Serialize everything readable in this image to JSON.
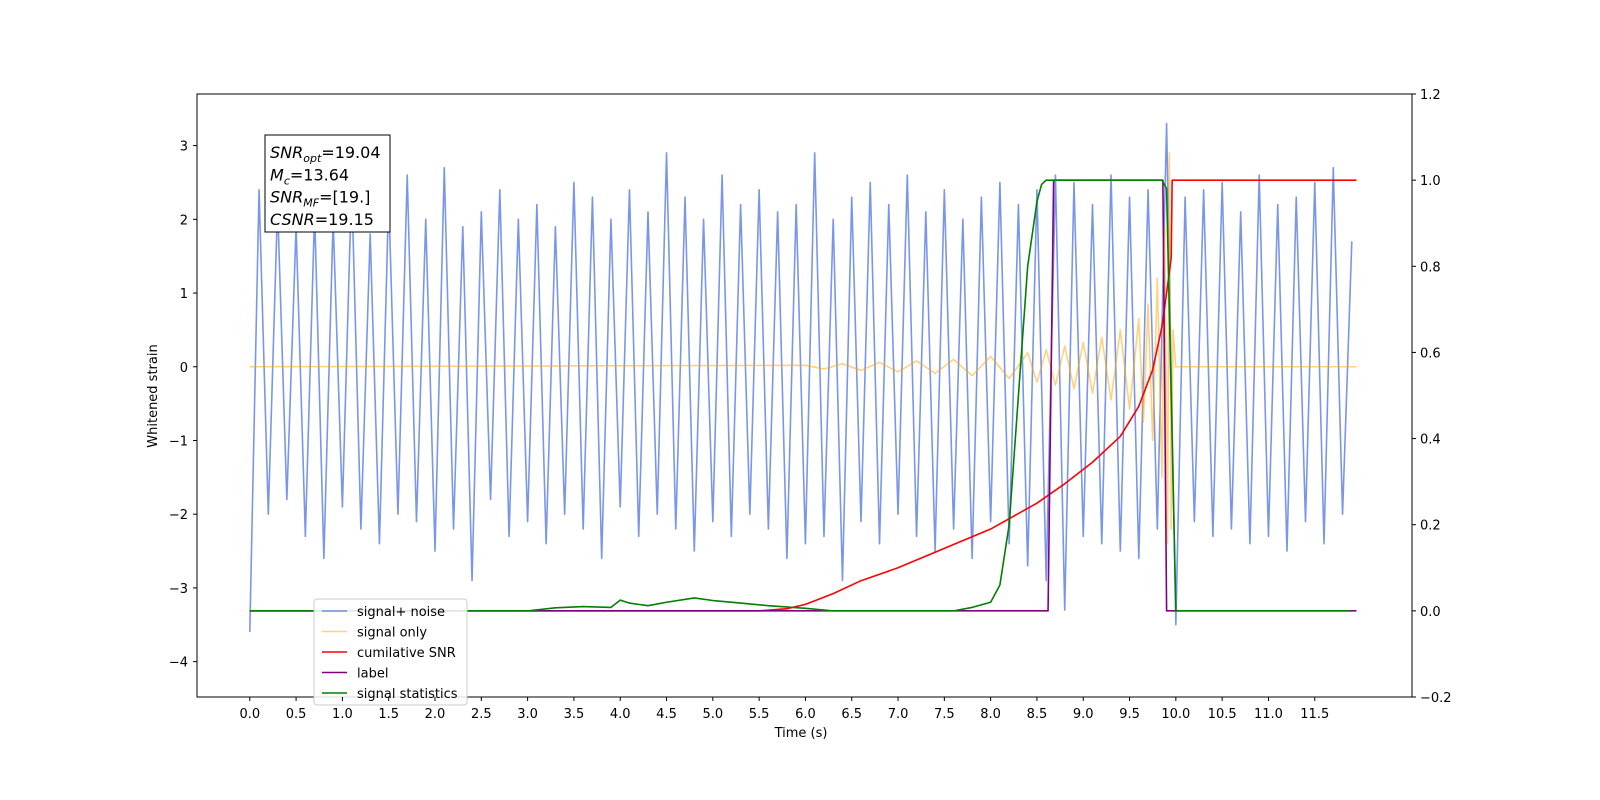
{
  "chart_data": {
    "type": "line",
    "xlabel": "Time (s)",
    "ylabel": "Whitened strain",
    "xlim": [
      -0.57,
      12.55
    ],
    "ylim": [
      -4.48,
      3.7
    ],
    "y2lim": [
      -0.2,
      1.2
    ],
    "xticks": [
      {
        "value": 0,
        "label": "0.0"
      },
      0.5,
      {
        "value": 1,
        "label": "1.0"
      },
      1.5,
      {
        "value": 2,
        "label": "2.0"
      },
      2.5,
      {
        "value": 3,
        "label": "3.0"
      },
      3.5,
      {
        "value": 4,
        "label": "4.0"
      },
      4.5,
      {
        "value": 5,
        "label": "5.0"
      },
      5.5,
      {
        "value": 6,
        "label": "6.0"
      },
      6.5,
      {
        "value": 7,
        "label": "7.0"
      },
      7.5,
      {
        "value": 8,
        "label": "8.0"
      },
      8.5,
      {
        "value": 9,
        "label": "9.0"
      },
      9.5,
      {
        "value": 10,
        "label": "10.0"
      },
      10.5,
      {
        "value": 11,
        "label": "11.0"
      },
      11.5
    ],
    "yticks": [
      {
        "value": -4,
        "label": "−4"
      },
      {
        "value": -3,
        "label": "−3"
      },
      {
        "value": -2,
        "label": "−2"
      },
      {
        "value": -1,
        "label": "−1"
      },
      0,
      1,
      2,
      3
    ],
    "y2ticks": [
      {
        "value": -0.2,
        "label": "−0.2"
      },
      {
        "value": 0,
        "label": "0.0"
      },
      0.2,
      0.4,
      0.6,
      0.8,
      {
        "value": 1,
        "label": "1.0"
      },
      1.2
    ],
    "legend_loc": "lower left",
    "annotations": [
      {
        "symbol": "SNR",
        "subscript": "opt",
        "text": "=19.04"
      },
      {
        "symbol": "M",
        "subscript": "c",
        "text": "=13.64"
      },
      {
        "symbol": "SNR",
        "subscript": "MF",
        "text": "=[19.]"
      },
      {
        "symbol": "CSNR",
        "text": "=19.15"
      }
    ],
    "series": [
      {
        "name": "signal+ noise",
        "color": "#4169e1",
        "alpha": 0.7,
        "x": [
          0.0,
          0.1,
          0.2,
          0.3,
          0.4,
          0.5,
          0.6,
          0.7,
          0.8,
          0.9,
          1.0,
          1.1,
          1.2,
          1.3,
          1.4,
          1.5,
          1.6,
          1.7,
          1.8,
          1.9,
          2.0,
          2.1,
          2.2,
          2.3,
          2.4,
          2.5,
          2.6,
          2.7,
          2.8,
          2.9,
          3.0,
          3.1,
          3.2,
          3.3,
          3.4,
          3.5,
          3.6,
          3.7,
          3.8,
          3.9,
          4.0,
          4.1,
          4.2,
          4.3,
          4.4,
          4.5,
          4.6,
          4.7,
          4.8,
          4.9,
          5.0,
          5.1,
          5.2,
          5.3,
          5.4,
          5.5,
          5.6,
          5.7,
          5.8,
          5.9,
          6.0,
          6.1,
          6.2,
          6.3,
          6.4,
          6.5,
          6.6,
          6.7,
          6.8,
          6.9,
          7.0,
          7.1,
          7.2,
          7.3,
          7.4,
          7.5,
          7.6,
          7.7,
          7.8,
          7.9,
          8.0,
          8.1,
          8.2,
          8.3,
          8.4,
          8.5,
          8.6,
          8.7,
          8.8,
          8.9,
          9.0,
          9.1,
          9.2,
          9.3,
          9.4,
          9.5,
          9.6,
          9.7,
          9.8,
          9.9,
          10.0,
          10.1,
          10.2,
          10.3,
          10.4,
          10.5,
          10.6,
          10.7,
          10.8,
          10.9,
          11.0,
          11.1,
          11.2,
          11.3,
          11.4,
          11.5,
          11.6,
          11.7,
          11.8,
          11.9
        ],
        "values": [
          -3.6,
          2.4,
          -2.0,
          2.2,
          -1.8,
          1.9,
          -2.3,
          2.1,
          -2.6,
          2.0,
          -1.9,
          2.5,
          -2.2,
          1.8,
          -2.4,
          2.3,
          -2.0,
          2.6,
          -2.1,
          2.0,
          -2.5,
          2.7,
          -2.2,
          1.9,
          -2.9,
          2.1,
          -1.8,
          2.4,
          -2.3,
          2.0,
          -2.1,
          2.2,
          -2.4,
          1.9,
          -2.0,
          2.5,
          -2.2,
          2.3,
          -2.6,
          2.0,
          -1.9,
          2.4,
          -2.3,
          2.1,
          -2.0,
          2.9,
          -2.2,
          2.3,
          -2.5,
          2.0,
          -2.1,
          2.6,
          -2.3,
          2.2,
          -2.0,
          2.4,
          -2.2,
          2.1,
          -2.6,
          2.2,
          -2.4,
          2.9,
          -2.3,
          2.0,
          -2.9,
          2.3,
          -2.1,
          2.5,
          -2.4,
          2.2,
          -2.0,
          2.6,
          -2.3,
          2.1,
          -2.5,
          2.4,
          -2.2,
          2.0,
          -2.6,
          2.3,
          -2.1,
          2.5,
          -2.4,
          2.2,
          -2.7,
          2.4,
          -2.9,
          2.6,
          -3.3,
          2.5,
          -2.3,
          2.2,
          -2.4,
          2.6,
          -2.5,
          2.3,
          -2.6,
          2.4,
          -2.2,
          3.3,
          -3.5,
          2.3,
          -2.1,
          2.4,
          -2.3,
          2.5,
          -2.2,
          2.1,
          -2.4,
          2.6,
          -2.3,
          2.2,
          -2.5,
          2.3,
          -2.1,
          2.5,
          -2.4,
          2.7,
          -2.0,
          1.7
        ]
      },
      {
        "name": "signal only",
        "color": "#ffa500",
        "alpha": 0.5,
        "x": [
          0,
          6.0,
          6.2,
          6.4,
          6.6,
          6.8,
          7.0,
          7.2,
          7.4,
          7.6,
          7.8,
          8.0,
          8.2,
          8.4,
          8.5,
          8.6,
          8.7,
          8.8,
          8.9,
          9.0,
          9.1,
          9.2,
          9.3,
          9.4,
          9.5,
          9.6,
          9.65,
          9.7,
          9.75,
          9.8,
          9.85,
          9.88,
          9.91,
          9.93,
          9.95,
          9.97,
          10.0,
          11.95
        ],
        "values": [
          0,
          0.02,
          -0.03,
          0.04,
          -0.05,
          0.06,
          -0.07,
          0.08,
          -0.09,
          0.1,
          -0.12,
          0.14,
          -0.16,
          0.19,
          -0.21,
          0.23,
          -0.25,
          0.28,
          -0.3,
          0.33,
          -0.36,
          0.4,
          -0.45,
          0.5,
          -0.57,
          0.65,
          -0.75,
          0.85,
          -1.0,
          1.2,
          -1.5,
          1.9,
          -2.4,
          2.9,
          -2.2,
          0.5,
          0,
          0
        ]
      },
      {
        "name": "cumilative SNR",
        "color": "#ff0000",
        "axis": "y2",
        "x": [
          0,
          5.5,
          5.8,
          6.0,
          6.3,
          6.6,
          7.0,
          7.5,
          8.0,
          8.5,
          8.8,
          9.1,
          9.4,
          9.6,
          9.75,
          9.85,
          9.92,
          9.95,
          9.96,
          11.95
        ],
        "values": [
          0,
          0,
          0.005,
          0.015,
          0.04,
          0.07,
          0.1,
          0.145,
          0.19,
          0.25,
          0.295,
          0.345,
          0.405,
          0.475,
          0.56,
          0.66,
          0.77,
          0.82,
          1.0,
          1.0
        ]
      },
      {
        "name": "label",
        "color": "#800080",
        "axis": "y2",
        "x": [
          0,
          8.62,
          8.68,
          9.86,
          9.9,
          11.95
        ],
        "values": [
          0,
          0,
          1,
          1,
          0,
          0
        ]
      },
      {
        "name": "signal statistics",
        "color": "#008000",
        "axis": "y2",
        "x": [
          0,
          3.0,
          3.3,
          3.6,
          3.9,
          4.0,
          4.1,
          4.3,
          4.5,
          4.8,
          5.0,
          5.3,
          5.6,
          6.0,
          6.3,
          7.6,
          7.8,
          8.0,
          8.1,
          8.2,
          8.3,
          8.4,
          8.5,
          8.55,
          8.6,
          9.85,
          9.9,
          9.95,
          10.0,
          11.88
        ],
        "values": [
          0,
          0,
          0.007,
          0.01,
          0.008,
          0.025,
          0.018,
          0.012,
          0.02,
          0.03,
          0.024,
          0.018,
          0.012,
          0.006,
          0,
          0,
          0.008,
          0.02,
          0.06,
          0.2,
          0.5,
          0.8,
          0.95,
          0.99,
          1.0,
          1.0,
          0.98,
          0.5,
          0,
          0
        ]
      }
    ]
  }
}
